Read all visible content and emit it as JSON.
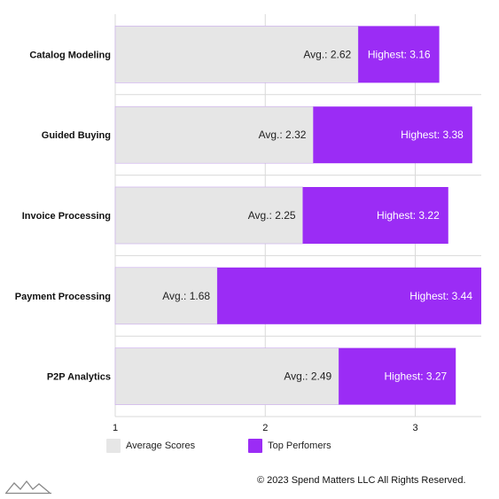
{
  "chart_data": {
    "type": "bar",
    "orientation": "horizontal",
    "categories": [
      "Catalog Modeling",
      "Guided Buying",
      "Invoice Processing",
      "Payment Processing",
      "P2P Analytics"
    ],
    "series": [
      {
        "name": "Average Scores",
        "values": [
          2.62,
          2.32,
          2.25,
          1.68,
          2.49
        ],
        "label_prefix": "Avg.: ",
        "color": "#e6e6e6"
      },
      {
        "name": "Top Perfomers",
        "values": [
          3.16,
          3.38,
          3.22,
          3.44,
          3.27
        ],
        "label_prefix": "Highest: ",
        "color": "#9b2cf5"
      }
    ],
    "xlim": [
      1,
      3.44
    ],
    "xticks": [
      1,
      2,
      3
    ],
    "grid": true,
    "legend_position": "bottom-left"
  },
  "legend": {
    "average_label": "Average Scores",
    "top_label": "Top Perfomers"
  },
  "footer": {
    "copyright": "© 2023 Spend Matters LLC All Rights Reserved."
  },
  "colors": {
    "average": "#e6e6e6",
    "top": "#9b2cf5",
    "grid": "#d9d9d9",
    "border": "#c9a8ee"
  },
  "logo": {
    "icon": "spend-matters-logo-icon"
  }
}
